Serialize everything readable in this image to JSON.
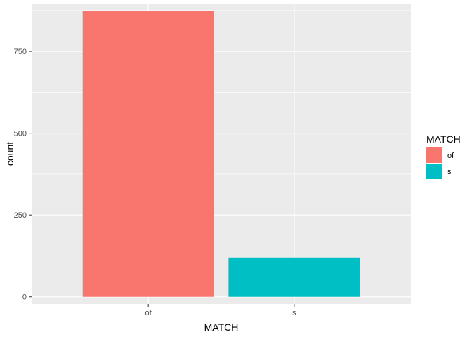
{
  "chart_data": {
    "type": "bar",
    "xlabel": "MATCH",
    "ylabel": "count",
    "categories": [
      "of",
      "s"
    ],
    "values": [
      874,
      120
    ],
    "colors": [
      "#F8766D",
      "#00BFC4"
    ],
    "ylim": [
      -22,
      896
    ],
    "yticks": [
      0,
      250,
      500,
      750
    ],
    "ytick_labels": [
      "0",
      "250",
      "500",
      "750"
    ],
    "grid": true,
    "panel_background": "#EBEBEB",
    "legend": {
      "title": "MATCH",
      "position": "right",
      "entries": [
        "of",
        "s"
      ]
    }
  }
}
